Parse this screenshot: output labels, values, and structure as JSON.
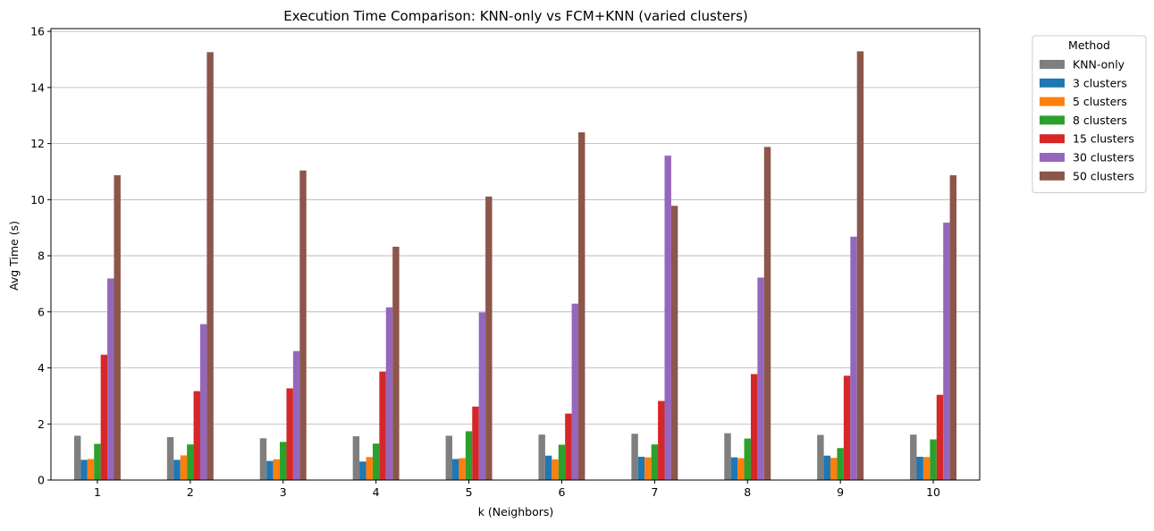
{
  "chart_data": {
    "type": "bar",
    "title": "Execution Time Comparison: KNN-only vs FCM+KNN (varied clusters)",
    "xlabel": "k (Neighbors)",
    "ylabel": "Avg Time (s)",
    "ylim": [
      0,
      16.1
    ],
    "yticks": [
      0,
      2,
      4,
      6,
      8,
      10,
      12,
      14,
      16
    ],
    "grid": "y",
    "legend_title": "Method",
    "legend_position": "outside-top-right",
    "categories": [
      "1",
      "2",
      "3",
      "4",
      "5",
      "6",
      "7",
      "8",
      "9",
      "10"
    ],
    "series": [
      {
        "name": "KNN-only",
        "color": "#7f7f7f",
        "values": [
          1.58,
          1.53,
          1.49,
          1.56,
          1.58,
          1.62,
          1.65,
          1.67,
          1.61,
          1.62
        ]
      },
      {
        "name": "3 clusters",
        "color": "#1f77b4",
        "values": [
          0.72,
          0.72,
          0.68,
          0.66,
          0.75,
          0.87,
          0.83,
          0.81,
          0.87,
          0.83
        ]
      },
      {
        "name": "5 clusters",
        "color": "#ff7f0e",
        "values": [
          0.75,
          0.88,
          0.74,
          0.82,
          0.78,
          0.74,
          0.81,
          0.78,
          0.79,
          0.82
        ]
      },
      {
        "name": "8 clusters",
        "color": "#2ca02c",
        "values": [
          1.29,
          1.27,
          1.36,
          1.3,
          1.74,
          1.26,
          1.27,
          1.48,
          1.14,
          1.45
        ]
      },
      {
        "name": "15 clusters",
        "color": "#d62728",
        "values": [
          4.47,
          3.17,
          3.27,
          3.87,
          2.62,
          2.37,
          2.82,
          3.78,
          3.72,
          3.04
        ]
      },
      {
        "name": "30 clusters",
        "color": "#9467bd",
        "values": [
          7.19,
          5.56,
          4.6,
          6.16,
          5.98,
          6.29,
          11.57,
          7.22,
          8.68,
          9.18
        ]
      },
      {
        "name": "50 clusters",
        "color": "#8c564b",
        "values": [
          10.87,
          15.26,
          11.04,
          8.32,
          10.11,
          12.4,
          9.78,
          11.88,
          15.29,
          10.87
        ]
      }
    ]
  }
}
